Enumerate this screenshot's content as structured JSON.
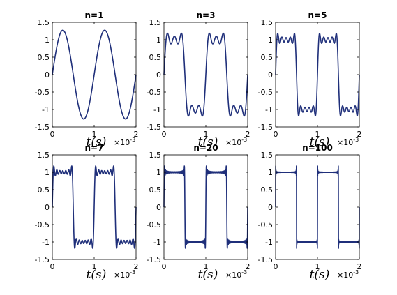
{
  "figure": {
    "line_color": "#1f2f7a",
    "axis_color": "#000000",
    "background": "#ffffff"
  },
  "chart_data": [
    {
      "type": "line",
      "title": "n=1",
      "harmonics": 1,
      "xlabel": "t(s)",
      "x_multiplier": "×10",
      "x_multiplier_exp": "-3",
      "xlim": [
        0,
        2
      ],
      "ylim": [
        -1.5,
        1.5
      ],
      "xticks": [
        "0",
        "1",
        "2"
      ],
      "yticks": [
        "1.5",
        "1",
        "0.5",
        "0",
        "-0.5",
        "-1",
        "-1.5"
      ],
      "period": 1,
      "amplitude": 1,
      "grid": false
    },
    {
      "type": "line",
      "title": "n=3",
      "harmonics": 3,
      "xlabel": "t(s)",
      "x_multiplier": "×10",
      "x_multiplier_exp": "-3",
      "xlim": [
        0,
        2
      ],
      "ylim": [
        -1.5,
        1.5
      ],
      "xticks": [
        "0",
        "1",
        "2"
      ],
      "yticks": [
        "1.5",
        "1",
        "0.5",
        "0",
        "-0.5",
        "-1",
        "-1.5"
      ],
      "period": 1,
      "amplitude": 1,
      "grid": false
    },
    {
      "type": "line",
      "title": "n=5",
      "harmonics": 5,
      "xlabel": "t(s)",
      "x_multiplier": "×10",
      "x_multiplier_exp": "-3",
      "xlim": [
        0,
        2
      ],
      "ylim": [
        -1.5,
        1.5
      ],
      "xticks": [
        "0",
        "1",
        "2"
      ],
      "yticks": [
        "1.5",
        "1",
        "0.5",
        "0",
        "-0.5",
        "-1",
        "-1.5"
      ],
      "period": 1,
      "amplitude": 1,
      "grid": false
    },
    {
      "type": "line",
      "title": "n=7",
      "harmonics": 7,
      "xlabel": "t(s)",
      "x_multiplier": "×10",
      "x_multiplier_exp": "-3",
      "xlim": [
        0,
        2
      ],
      "ylim": [
        -1.5,
        1.5
      ],
      "xticks": [
        "0",
        "1",
        "2"
      ],
      "yticks": [
        "1.5",
        "1",
        "0.5",
        "0",
        "-0.5",
        "-1",
        "-1.5"
      ],
      "period": 1,
      "amplitude": 1,
      "grid": false
    },
    {
      "type": "line",
      "title": "n=20",
      "harmonics": 20,
      "xlabel": "t(s)",
      "x_multiplier": "×10",
      "x_multiplier_exp": "-3",
      "xlim": [
        0,
        2
      ],
      "ylim": [
        -1.5,
        1.5
      ],
      "xticks": [
        "0",
        "1",
        "2"
      ],
      "yticks": [
        "1.5",
        "1",
        "0.5",
        "0",
        "-0.5",
        "-1",
        "-1.5"
      ],
      "period": 1,
      "amplitude": 1,
      "grid": false
    },
    {
      "type": "line",
      "title": "n=100",
      "harmonics": 100,
      "xlabel": "t(s)",
      "x_multiplier": "×10",
      "x_multiplier_exp": "-3",
      "xlim": [
        0,
        2
      ],
      "ylim": [
        -1.5,
        1.5
      ],
      "xticks": [
        "0",
        "1",
        "2"
      ],
      "yticks": [
        "1.5",
        "1",
        "0.5",
        "0",
        "-0.5",
        "-1",
        "-1.5"
      ],
      "period": 1,
      "amplitude": 1,
      "grid": false
    }
  ]
}
